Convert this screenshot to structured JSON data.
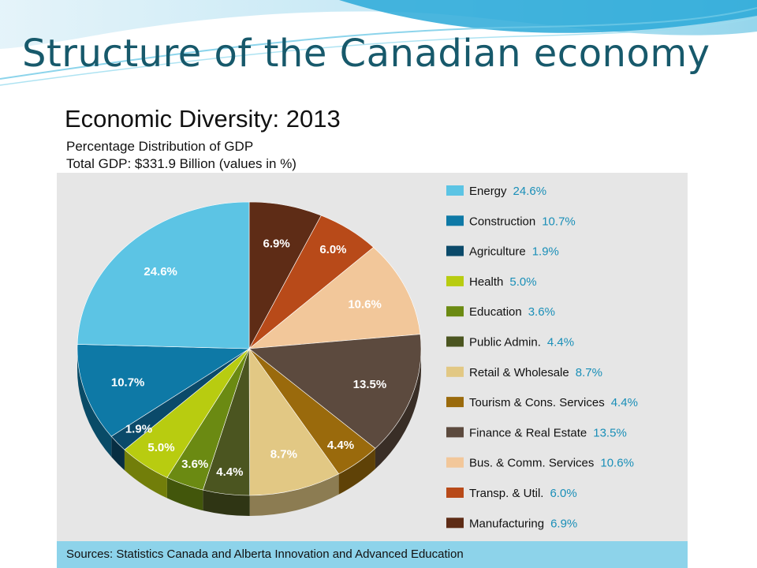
{
  "slide": {
    "title": "Structure of the Canadian economy"
  },
  "chart_data": {
    "type": "pie",
    "title": "Economic Diversity: 2013",
    "subtitle_lines": [
      "Percentage Distribution of GDP",
      "Total GDP: $331.9 Billion (values in %)"
    ],
    "source": "Sources: Statistics Canada and Alberta Innovation and Advanced Education",
    "legend_position": "right",
    "slices": [
      {
        "name": "Manufacturing",
        "value": 6.9,
        "label": "6.9%",
        "legend_value": "6.9%",
        "color": "#5e2c16"
      },
      {
        "name": "Transp. & Util.",
        "value": 6.0,
        "label": "6.0%",
        "legend_value": "6.0%",
        "color": "#b84a19"
      },
      {
        "name": "Bus. & Comm. Services",
        "value": 10.6,
        "label": "10.6%",
        "legend_value": "10.6%",
        "color": "#f2c79a"
      },
      {
        "name": "Finance & Real Estate",
        "value": 13.5,
        "label": "13.5%",
        "legend_value": "13.5%",
        "color": "#5c4a3e"
      },
      {
        "name": "Tourism & Cons. Services",
        "value": 4.4,
        "label": "4.4%",
        "legend_value": "4.4%",
        "color": "#9a6a0c"
      },
      {
        "name": "Retail & Wholesale",
        "value": 8.7,
        "label": "8.7%",
        "legend_value": "8.7%",
        "color": "#e2c884"
      },
      {
        "name": "Public Admin.",
        "value": 4.4,
        "label": "4.4%",
        "legend_value": "4.4%",
        "color": "#4b5520"
      },
      {
        "name": "Education",
        "value": 3.6,
        "label": "3.6%",
        "legend_value": "3.6%",
        "color": "#6b8a12"
      },
      {
        "name": "Health",
        "value": 5.0,
        "label": "5.0%",
        "legend_value": "5.0%",
        "color": "#b8cc10"
      },
      {
        "name": "Agriculture",
        "value": 1.9,
        "label": "1.9%",
        "legend_value": "1.9%",
        "color": "#0b4a6a"
      },
      {
        "name": "Construction",
        "value": 10.7,
        "label": "10.7%",
        "legend_value": "10.7%",
        "color": "#0e79a6"
      },
      {
        "name": "Energy",
        "value": 24.6,
        "label": "24.6%",
        "legend_value": "24.6%",
        "color": "#5cc4e4"
      }
    ],
    "legend_order": [
      "Energy",
      "Construction",
      "Agriculture",
      "Health",
      "Education",
      "Public Admin.",
      "Retail & Wholesale",
      "Tourism & Cons. Services",
      "Finance & Real Estate",
      "Bus. & Comm. Services",
      "Transp. & Util.",
      "Manufacturing"
    ],
    "legend_value_color": "#1a8fb8"
  }
}
